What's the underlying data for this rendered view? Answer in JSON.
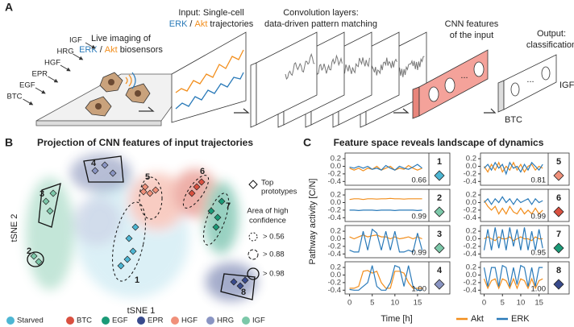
{
  "panel_a": {
    "label": "A",
    "signals": [
      "IGF",
      "HRG",
      "HGF",
      "EPR",
      "EGF",
      "BTC"
    ],
    "imaging_line1": "Live imaging of",
    "imaging_line2": [
      "ERK",
      "/",
      "Akt",
      "biosensors"
    ],
    "input_line1": "Input: Single-cell",
    "input_line2": [
      "ERK",
      "/",
      "Akt",
      "trajectories"
    ],
    "conv_title": [
      "Convolution layers:",
      "data-driven pattern matching"
    ],
    "cnn_title": [
      "CNN features",
      "of the input"
    ],
    "cnn_ellipsis": "...",
    "output_title": [
      "Output:",
      "classification"
    ],
    "output_ellipsis": "...",
    "output_classes": [
      "IGF",
      "BTC"
    ]
  },
  "panel_b": {
    "label": "B",
    "title": "Projection of CNN features of input trajectories",
    "xlabel": "tSNE 1",
    "ylabel": "tSNE 2",
    "cluster_labels": [
      "1",
      "2",
      "3",
      "4",
      "5",
      "6",
      "7",
      "8"
    ],
    "prototype_legend": [
      "Top",
      "prototypes"
    ],
    "confidence_title": [
      "Area of high",
      "confidence"
    ],
    "confidence_levels": [
      "> 0.56",
      "> 0.88",
      "> 0.98"
    ],
    "legend": [
      {
        "name": "Starved",
        "color": "#4db6d3"
      },
      {
        "name": "BTC",
        "color": "#d95040"
      },
      {
        "name": "EGF",
        "color": "#1b9a77"
      },
      {
        "name": "EPR",
        "color": "#384a8c"
      },
      {
        "name": "HGF",
        "color": "#f0907a"
      },
      {
        "name": "HRG",
        "color": "#8a95c3"
      },
      {
        "name": "IGF",
        "color": "#7cc8a9"
      }
    ]
  },
  "panel_c": {
    "label": "C",
    "title": "Feature space reveals landscape of dynamics",
    "ylabel": "Pathway activity [C/N]",
    "xlabel": "Time [h]"
  },
  "chart_data": [
    {
      "type": "line",
      "label": "1",
      "score": 0.66,
      "marker_color": "#4db6d3",
      "x": [
        0,
        1,
        2,
        3,
        4,
        5,
        6,
        7,
        8,
        9,
        10,
        11,
        12,
        13,
        14,
        15,
        16
      ],
      "xlim": [
        -1,
        17.5
      ],
      "ylim": [
        -0.5,
        0.35
      ],
      "yticks": [
        0.2,
        {
          "value": 0,
          "label": "0.0"
        },
        -0.2,
        -0.4
      ],
      "series": [
        {
          "name": "Akt",
          "color": "#f28e1c",
          "values": [
            -0.05,
            -0.1,
            -0.05,
            -0.12,
            -0.05,
            -0.08,
            0.0,
            -0.1,
            -0.05,
            0.0,
            -0.1,
            -0.05,
            -0.08,
            0.02,
            -0.05,
            -0.1,
            -0.05
          ]
        },
        {
          "name": "ERK",
          "color": "#2a7ab9",
          "values": [
            -0.02,
            -0.05,
            0.0,
            -0.05,
            0.0,
            -0.08,
            -0.05,
            -0.1,
            0.02,
            -0.05,
            -0.1,
            0.0,
            -0.05,
            -0.08,
            -0.02,
            0.05,
            -0.05
          ]
        }
      ]
    },
    {
      "type": "line",
      "label": "2",
      "score": 0.99,
      "marker_color": "#7cc8a9",
      "x": [
        0,
        1,
        2,
        3,
        4,
        5,
        6,
        7,
        8,
        9,
        10,
        11,
        12,
        13,
        14,
        15,
        16
      ],
      "xlim": [
        -1,
        17.5
      ],
      "ylim": [
        -0.5,
        0.35
      ],
      "yticks": [
        0.2,
        {
          "value": 0,
          "label": "0.0"
        },
        -0.2,
        -0.4
      ],
      "series": [
        {
          "name": "Akt",
          "color": "#f28e1c",
          "values": [
            0.08,
            0.1,
            0.1,
            0.08,
            0.1,
            0.1,
            0.09,
            0.1,
            0.1,
            0.11,
            0.1,
            0.1,
            0.09,
            0.1,
            0.1,
            0.1,
            0.1
          ]
        },
        {
          "name": "ERK",
          "color": "#2a7ab9",
          "values": [
            -0.2,
            -0.2,
            -0.21,
            -0.2,
            -0.2,
            -0.2,
            -0.21,
            -0.2,
            -0.2,
            -0.2,
            -0.21,
            -0.2,
            -0.2,
            -0.2,
            -0.2,
            -0.21,
            -0.2
          ]
        }
      ]
    },
    {
      "type": "line",
      "label": "3",
      "score": 0.99,
      "marker_color": "#7cc8a9",
      "x": [
        0,
        1,
        2,
        3,
        4,
        5,
        6,
        7,
        8,
        9,
        10,
        11,
        12,
        13,
        14,
        15,
        16
      ],
      "xlim": [
        -1,
        17.5
      ],
      "ylim": [
        -0.5,
        0.35
      ],
      "yticks": [
        0.2,
        {
          "value": 0,
          "label": "0.0"
        },
        -0.2,
        -0.4
      ],
      "series": [
        {
          "name": "Akt",
          "color": "#f28e1c",
          "values": [
            0.05,
            0.0,
            0.05,
            0.1,
            0.05,
            0.08,
            0.1,
            0.05,
            0.05,
            0.0,
            0.05,
            0.0,
            0.02,
            0.05,
            0.0,
            0.05,
            0.0
          ]
        },
        {
          "name": "ERK",
          "color": "#2a7ab9",
          "values": [
            -0.3,
            -0.35,
            -0.35,
            0.2,
            -0.3,
            0.25,
            0.15,
            -0.3,
            0.2,
            -0.3,
            0.2,
            -0.35,
            -0.35,
            -0.3,
            -0.35,
            0.15,
            -0.3
          ]
        }
      ]
    },
    {
      "type": "line",
      "label": "4",
      "score": {
        "value": 1,
        "label": "1.00"
      },
      "marker_color": "#8a95c3",
      "x": [
        0,
        1,
        2,
        3,
        4,
        5,
        6,
        7,
        8,
        9,
        10,
        11,
        12,
        13,
        14,
        15,
        16
      ],
      "xlim": [
        -1,
        17.5
      ],
      "ylim": [
        -0.5,
        0.35
      ],
      "yticks": [
        0.2,
        {
          "value": 0,
          "label": "0.0"
        },
        -0.2,
        -0.4
      ],
      "xticks": [
        0,
        5,
        10,
        15
      ],
      "series": [
        {
          "name": "Akt",
          "color": "#f28e1c",
          "values": [
            -0.35,
            -0.35,
            -0.3,
            0.1,
            0.12,
            0.05,
            0.1,
            -0.2,
            -0.35,
            -0.35,
            0.1,
            0.1,
            0.05,
            -0.2,
            -0.35,
            -0.35,
            -0.35
          ]
        },
        {
          "name": "ERK",
          "color": "#2a7ab9",
          "values": [
            -0.38,
            -0.4,
            -0.4,
            -0.3,
            -0.2,
            0.25,
            -0.3,
            -0.4,
            -0.4,
            -0.2,
            0.25,
            0.2,
            -0.3,
            0.25,
            -0.3,
            -0.4,
            -0.4
          ]
        }
      ]
    },
    {
      "type": "line",
      "label": "5",
      "score": 0.81,
      "marker_color": "#f0907a",
      "x": [
        0,
        1,
        2,
        3,
        4,
        5,
        6,
        7,
        8,
        9,
        10,
        11,
        12,
        13,
        14,
        15,
        16
      ],
      "xlim": [
        -1,
        17.5
      ],
      "ylim": [
        -0.5,
        0.35
      ],
      "yticks": [
        0.2,
        {
          "value": 0,
          "label": "0.0"
        },
        -0.2,
        -0.4
      ],
      "series": [
        {
          "name": "Akt",
          "color": "#f28e1c",
          "values": [
            0.0,
            -0.15,
            0.05,
            -0.1,
            0.1,
            -0.15,
            0.0,
            -0.1,
            0.1,
            -0.1,
            0.05,
            -0.15,
            0.0,
            0.05,
            -0.1,
            0.0,
            -0.05
          ]
        },
        {
          "name": "ERK",
          "color": "#2a7ab9",
          "values": [
            -0.05,
            0.05,
            -0.1,
            0.1,
            -0.05,
            0.05,
            -0.2,
            0.1,
            -0.05,
            0.0,
            -0.15,
            0.05,
            -0.1,
            0.1,
            0.0,
            -0.1,
            0.05
          ]
        }
      ]
    },
    {
      "type": "line",
      "label": "6",
      "score": 0.99,
      "marker_color": "#d95040",
      "x": [
        0,
        1,
        2,
        3,
        4,
        5,
        6,
        7,
        8,
        9,
        10,
        11,
        12,
        13,
        14,
        15,
        16
      ],
      "xlim": [
        -1,
        17.5
      ],
      "ylim": [
        -0.5,
        0.35
      ],
      "yticks": [
        0.2,
        {
          "value": 0,
          "label": "0.0"
        },
        -0.2,
        -0.4
      ],
      "series": [
        {
          "name": "Akt",
          "color": "#f28e1c",
          "values": [
            0.05,
            -0.1,
            -0.2,
            -0.1,
            -0.3,
            -0.15,
            -0.3,
            -0.1,
            -0.25,
            -0.3,
            -0.15,
            -0.3,
            -0.2,
            -0.3,
            -0.15,
            -0.3,
            -0.2
          ]
        },
        {
          "name": "ERK",
          "color": "#2a7ab9",
          "values": [
            0.0,
            0.1,
            -0.05,
            0.1,
            0.0,
            0.15,
            0.0,
            0.1,
            -0.05,
            0.1,
            0.0,
            0.05,
            0.1,
            -0.05,
            0.1,
            0.0,
            0.05
          ]
        }
      ]
    },
    {
      "type": "line",
      "label": "7",
      "score": 0.95,
      "marker_color": "#1b9a77",
      "x": [
        0,
        1,
        2,
        3,
        4,
        5,
        6,
        7,
        8,
        9,
        10,
        11,
        12,
        13,
        14,
        15,
        16
      ],
      "xlim": [
        -1,
        17.5
      ],
      "ylim": [
        -0.5,
        0.35
      ],
      "yticks": [
        0.2,
        {
          "value": 0,
          "label": "0.0"
        },
        -0.2,
        -0.4
      ],
      "series": [
        {
          "name": "Akt",
          "color": "#f28e1c",
          "values": [
            0.0,
            0.05,
            0.0,
            -0.05,
            0.05,
            0.0,
            0.0,
            0.05,
            -0.05,
            0.0,
            0.05,
            0.0,
            0.0,
            -0.05,
            0.05,
            0.0,
            0.0
          ]
        },
        {
          "name": "ERK",
          "color": "#2a7ab9",
          "values": [
            -0.3,
            0.25,
            -0.3,
            0.3,
            -0.25,
            0.25,
            -0.3,
            0.3,
            -0.2,
            0.25,
            -0.3,
            0.3,
            -0.3,
            0.2,
            -0.3,
            0.25,
            -0.25
          ]
        }
      ]
    },
    {
      "type": "line",
      "label": "8",
      "score": {
        "value": 1,
        "label": "1.00"
      },
      "marker_color": "#384a8c",
      "x": [
        0,
        1,
        2,
        3,
        4,
        5,
        6,
        7,
        8,
        9,
        10,
        11,
        12,
        13,
        14,
        15,
        16
      ],
      "xlim": [
        -1,
        17.5
      ],
      "ylim": [
        -0.5,
        0.35
      ],
      "yticks": [
        0.2,
        {
          "value": 0,
          "label": "0.0"
        },
        -0.2,
        -0.4
      ],
      "xticks": [
        0,
        5,
        10,
        15
      ],
      "series": [
        {
          "name": "Akt",
          "color": "#f28e1c",
          "values": [
            -0.1,
            -0.35,
            -0.15,
            -0.1,
            -0.35,
            -0.1,
            -0.15,
            -0.35,
            -0.1,
            -0.35,
            -0.1,
            -0.15,
            -0.35,
            -0.1,
            -0.35,
            -0.15,
            -0.1
          ]
        },
        {
          "name": "ERK",
          "color": "#2a7ab9",
          "values": [
            0.2,
            -0.3,
            0.2,
            0.2,
            -0.3,
            0.25,
            0.2,
            -0.3,
            0.2,
            -0.25,
            0.25,
            0.2,
            -0.3,
            0.2,
            -0.3,
            0.2,
            0.2
          ]
        }
      ]
    }
  ]
}
